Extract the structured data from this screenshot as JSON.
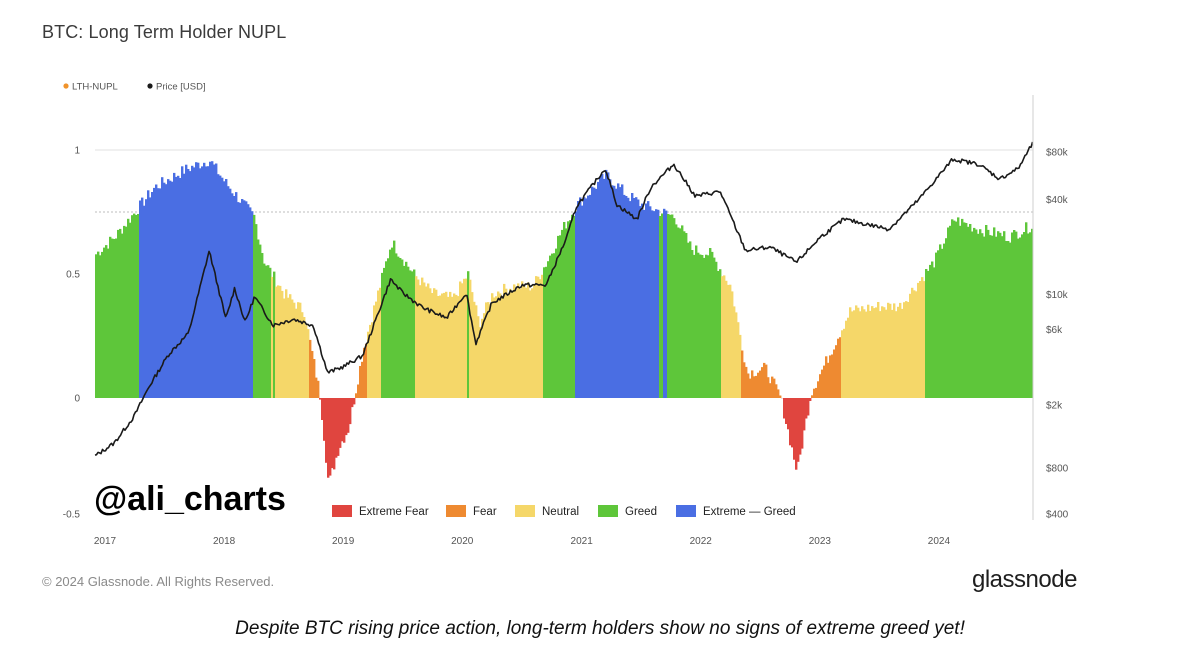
{
  "title": "BTC: Long Term Holder NUPL",
  "watermark": "@ali_charts",
  "copyright": "© 2024 Glassnode. All Rights Reserved.",
  "brand": "glassnode",
  "caption": "Despite BTC rising price action, long-term holders show no signs of extreme greed yet!",
  "chart_data": {
    "type": "area",
    "x_domain": [
      "2017-01-01",
      "2024-11-15"
    ],
    "x_ticks": [
      "2017",
      "2018",
      "2019",
      "2020",
      "2021",
      "2022",
      "2023",
      "2024"
    ],
    "ylim_left": [
      -0.5,
      1.05
    ],
    "y_ticks_left": [
      {
        "v": 1,
        "label": "1"
      },
      {
        "v": 0.5,
        "label": "0.5"
      },
      {
        "v": 0,
        "label": "0"
      },
      {
        "v": -0.5,
        "label": "-0.5"
      }
    ],
    "y_scale_right": "log",
    "ylim_right": [
      400,
      110000
    ],
    "y_ticks_right": [
      {
        "v": 80000,
        "label": "$80k"
      },
      {
        "v": 40000,
        "label": "$40k"
      },
      {
        "v": 10000,
        "label": "$10k"
      },
      {
        "v": 6000,
        "label": "$6k"
      },
      {
        "v": 2000,
        "label": "$2k"
      },
      {
        "v": 800,
        "label": "$800"
      },
      {
        "v": 400,
        "label": "$400"
      }
    ],
    "legend_top": [
      {
        "name": "LTH-NUPL",
        "color": "#f0932b"
      },
      {
        "name": "Price [USD]",
        "color": "#1a1a1a"
      }
    ],
    "zones": [
      {
        "name": "Extreme Fear",
        "color": "#e0453f",
        "max": 0
      },
      {
        "name": "Fear",
        "color": "#ee8a31",
        "max": 0.25
      },
      {
        "name": "Neutral",
        "color": "#f5d769",
        "max": 0.5
      },
      {
        "name": "Greed",
        "color": "#5ec63a",
        "max": 0.75
      },
      {
        "name": "Extreme — Greed",
        "color": "#4a6ee3",
        "max": 1
      }
    ],
    "series": [
      {
        "name": "LTH-NUPL",
        "points": [
          [
            "2017-01-01",
            0.58
          ],
          [
            "2017-03-01",
            0.65
          ],
          [
            "2017-05-01",
            0.75
          ],
          [
            "2017-07-01",
            0.85
          ],
          [
            "2017-10-01",
            0.92
          ],
          [
            "2017-12-15",
            0.96
          ],
          [
            "2018-02-01",
            0.87
          ],
          [
            "2018-05-01",
            0.73
          ],
          [
            "2018-06-01",
            0.55
          ],
          [
            "2018-08-01",
            0.42
          ],
          [
            "2018-10-01",
            0.35
          ],
          [
            "2018-11-20",
            0.0
          ],
          [
            "2018-12-15",
            -0.35
          ],
          [
            "2019-01-15",
            -0.2
          ],
          [
            "2019-02-15",
            -0.12
          ],
          [
            "2019-04-01",
            0.2
          ],
          [
            "2019-06-26",
            0.63
          ],
          [
            "2019-09-01",
            0.5
          ],
          [
            "2019-11-01",
            0.42
          ],
          [
            "2020-01-01",
            0.4
          ],
          [
            "2020-02-15",
            0.5
          ],
          [
            "2020-03-20",
            0.3
          ],
          [
            "2020-05-01",
            0.42
          ],
          [
            "2020-07-01",
            0.45
          ],
          [
            "2020-09-01",
            0.45
          ],
          [
            "2020-10-15",
            0.55
          ],
          [
            "2020-12-01",
            0.68
          ],
          [
            "2021-01-15",
            0.78
          ],
          [
            "2021-04-15",
            0.9
          ],
          [
            "2021-06-15",
            0.82
          ],
          [
            "2021-08-01",
            0.78
          ],
          [
            "2021-10-01",
            0.75
          ],
          [
            "2021-11-10",
            0.73
          ],
          [
            "2022-01-01",
            0.6
          ],
          [
            "2022-03-01",
            0.58
          ],
          [
            "2022-05-01",
            0.45
          ],
          [
            "2022-06-20",
            0.1
          ],
          [
            "2022-08-15",
            0.12
          ],
          [
            "2022-10-01",
            0.0
          ],
          [
            "2022-11-20",
            -0.3
          ],
          [
            "2023-01-01",
            0.02
          ],
          [
            "2023-03-01",
            0.18
          ],
          [
            "2023-05-01",
            0.35
          ],
          [
            "2023-08-01",
            0.37
          ],
          [
            "2023-10-01",
            0.37
          ],
          [
            "2024-01-15",
            0.55
          ],
          [
            "2024-03-15",
            0.72
          ],
          [
            "2024-06-01",
            0.68
          ],
          [
            "2024-09-01",
            0.65
          ],
          [
            "2024-11-15",
            0.7
          ]
        ]
      },
      {
        "name": "Price [USD]",
        "points": [
          [
            "2017-01-01",
            950
          ],
          [
            "2017-03-01",
            1150
          ],
          [
            "2017-05-01",
            1700
          ],
          [
            "2017-06-15",
            2600
          ],
          [
            "2017-08-15",
            4200
          ],
          [
            "2017-10-15",
            5700
          ],
          [
            "2017-12-17",
            19000
          ],
          [
            "2018-02-06",
            7000
          ],
          [
            "2018-03-05",
            11000
          ],
          [
            "2018-04-06",
            6700
          ],
          [
            "2018-05-05",
            9700
          ],
          [
            "2018-07-01",
            6400
          ],
          [
            "2018-09-01",
            7000
          ],
          [
            "2018-11-01",
            6400
          ],
          [
            "2018-12-15",
            3200
          ],
          [
            "2019-02-01",
            3500
          ],
          [
            "2019-04-01",
            4100
          ],
          [
            "2019-06-26",
            12500
          ],
          [
            "2019-08-01",
            10300
          ],
          [
            "2019-10-01",
            8300
          ],
          [
            "2019-12-15",
            7100
          ],
          [
            "2020-02-13",
            10300
          ],
          [
            "2020-03-13",
            4900
          ],
          [
            "2020-05-01",
            8800
          ],
          [
            "2020-08-01",
            11500
          ],
          [
            "2020-10-15",
            11500
          ],
          [
            "2020-12-17",
            23000
          ],
          [
            "2021-01-15",
            36000
          ],
          [
            "2021-04-14",
            63000
          ],
          [
            "2021-05-20",
            37000
          ],
          [
            "2021-07-20",
            30000
          ],
          [
            "2021-09-01",
            48000
          ],
          [
            "2021-11-10",
            67000
          ],
          [
            "2022-01-15",
            42000
          ],
          [
            "2022-04-01",
            45000
          ],
          [
            "2022-06-18",
            19000
          ],
          [
            "2022-09-01",
            20000
          ],
          [
            "2022-11-21",
            16000
          ],
          [
            "2023-02-01",
            23000
          ],
          [
            "2023-04-15",
            30000
          ],
          [
            "2023-09-01",
            26000
          ],
          [
            "2023-12-01",
            40000
          ],
          [
            "2024-03-14",
            72000
          ],
          [
            "2024-06-01",
            67000
          ],
          [
            "2024-08-05",
            54000
          ],
          [
            "2024-10-01",
            63000
          ],
          [
            "2024-11-13",
            90000
          ]
        ]
      }
    ]
  }
}
